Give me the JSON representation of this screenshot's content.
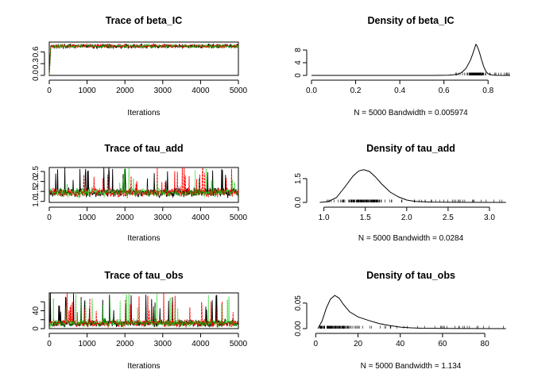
{
  "colors": {
    "chain1": "#000000",
    "chain2": "#ff0000",
    "chain3": "#00cc00",
    "axis": "#000000"
  },
  "chart_data": [
    {
      "type": "line",
      "title": "Trace of beta_IC",
      "xlabel": "Iterations",
      "xlim": [
        0,
        5000
      ],
      "ylim": [
        0,
        0.85
      ],
      "xticks": [
        0,
        1000,
        2000,
        3000,
        4000,
        5000
      ],
      "yticks": [
        0.0,
        0.3,
        0.6
      ],
      "xticklabels": [
        "0",
        "1000",
        "2000",
        "3000",
        "4000",
        "5000"
      ],
      "yticklabels": [
        "0.0",
        "0.3",
        "0.6"
      ],
      "trace": {
        "n": 5000,
        "start_value": 0.02,
        "burnin": 40,
        "center": 0.745,
        "spread": 0.03,
        "floor": 0.6,
        "spike_rate": 0.0
      },
      "series": [
        {},
        {},
        {}
      ]
    },
    {
      "type": "line",
      "title": "Density of beta_IC",
      "xlabel": "N = 5000   Bandwidth = 0.005974",
      "xlim": [
        0,
        0.9
      ],
      "ylim": [
        0,
        10.5
      ],
      "xticks": [
        0.0,
        0.2,
        0.4,
        0.6,
        0.8
      ],
      "yticks": [
        0,
        4,
        8
      ],
      "xticklabels": [
        "0.0",
        "0.2",
        "0.4",
        "0.6",
        "0.8"
      ],
      "yticklabels": [
        "0",
        "4",
        "8"
      ],
      "density": {
        "x": [
          0.0,
          0.55,
          0.62,
          0.66,
          0.68,
          0.7,
          0.72,
          0.73,
          0.74,
          0.745,
          0.75,
          0.76,
          0.77,
          0.78,
          0.79,
          0.8,
          0.82,
          0.84,
          0.9
        ],
        "y": [
          0.0,
          0.0,
          0.05,
          0.3,
          0.9,
          2.2,
          4.8,
          6.7,
          8.8,
          9.8,
          9.3,
          7.5,
          5.0,
          2.8,
          1.3,
          0.5,
          0.1,
          0.02,
          0.0
        ],
        "rug_min": 0.62,
        "rug_max": 0.9
      }
    },
    {
      "type": "line",
      "title": "Trace of tau_add",
      "xlabel": "Iterations",
      "xlim": [
        0,
        5000
      ],
      "ylim": [
        0.95,
        2.7
      ],
      "xticks": [
        0,
        1000,
        2000,
        3000,
        4000,
        5000
      ],
      "yticks": [
        1.0,
        1.5,
        2.0,
        2.5
      ],
      "xticklabels": [
        "0",
        "1000",
        "2000",
        "3000",
        "4000",
        "5000"
      ],
      "yticklabels": [
        "1.0",
        "1.5",
        "2.0",
        "2.5"
      ],
      "trace": {
        "n": 5000,
        "start_value": 1.4,
        "burnin": 0,
        "center": 1.45,
        "spread": 0.13,
        "floor": 1.02,
        "spike_rate": 0.004
      },
      "series": [
        {},
        {},
        {}
      ]
    },
    {
      "type": "line",
      "title": "Density of tau_add",
      "xlabel": "N = 5000   Bandwidth = 0.0284",
      "xlim": [
        0.85,
        3.25
      ],
      "ylim": [
        0,
        2.2
      ],
      "xticks": [
        1.0,
        1.5,
        2.0,
        2.5,
        3.0
      ],
      "yticks": [
        0.0,
        1.5
      ],
      "xticklabels": [
        "1.0",
        "1.5",
        "2.0",
        "2.5",
        "3.0"
      ],
      "yticklabels": [
        "0.0",
        "1.5"
      ],
      "density": {
        "x": [
          0.95,
          1.05,
          1.15,
          1.25,
          1.35,
          1.42,
          1.48,
          1.55,
          1.62,
          1.7,
          1.8,
          1.9,
          2.0,
          2.1,
          2.3,
          2.6,
          3.2
        ],
        "y": [
          0.0,
          0.05,
          0.3,
          0.95,
          1.65,
          1.98,
          2.06,
          1.95,
          1.62,
          1.15,
          0.65,
          0.35,
          0.15,
          0.06,
          0.02,
          0.005,
          0.0
        ],
        "rug_min": 1.0,
        "rug_max": 3.2
      }
    },
    {
      "type": "line",
      "title": "Trace of tau_obs",
      "xlabel": "Iterations",
      "xlim": [
        0,
        5000
      ],
      "ylim": [
        0,
        80
      ],
      "xticks": [
        0,
        1000,
        2000,
        3000,
        4000,
        5000
      ],
      "yticks": [
        0,
        20,
        40,
        60
      ],
      "xticklabels": [
        "0",
        "1000",
        "2000",
        "3000",
        "4000",
        "5000"
      ],
      "yticklabels": [
        "0",
        "",
        "40",
        ""
      ],
      "trace": {
        "n": 5000,
        "start_value": 10,
        "burnin": 0,
        "center": 12,
        "spread": 5,
        "floor": 3,
        "spike_rate": 0.006
      },
      "series": [
        {},
        {},
        {}
      ]
    },
    {
      "type": "line",
      "title": "Density of tau_obs",
      "xlabel": "N = 5000   Bandwidth = 1.134",
      "xlim": [
        -2,
        92
      ],
      "ylim": [
        0,
        0.07
      ],
      "xticks": [
        0,
        20,
        40,
        60,
        80
      ],
      "yticks": [
        0.0,
        0.05
      ],
      "xticklabels": [
        "0",
        "20",
        "40",
        "60",
        "80"
      ],
      "yticklabels": [
        "0.00",
        "0.05"
      ],
      "density": {
        "x": [
          1,
          3,
          5,
          7,
          9,
          11,
          13,
          16,
          20,
          25,
          30,
          35,
          40,
          45,
          50,
          60,
          70,
          90
        ],
        "y": [
          0.0,
          0.015,
          0.04,
          0.058,
          0.065,
          0.06,
          0.048,
          0.033,
          0.023,
          0.016,
          0.01,
          0.006,
          0.003,
          0.0015,
          0.0008,
          0.0003,
          0.0001,
          0.0
        ],
        "rug_min": 2,
        "rug_max": 90
      }
    }
  ]
}
